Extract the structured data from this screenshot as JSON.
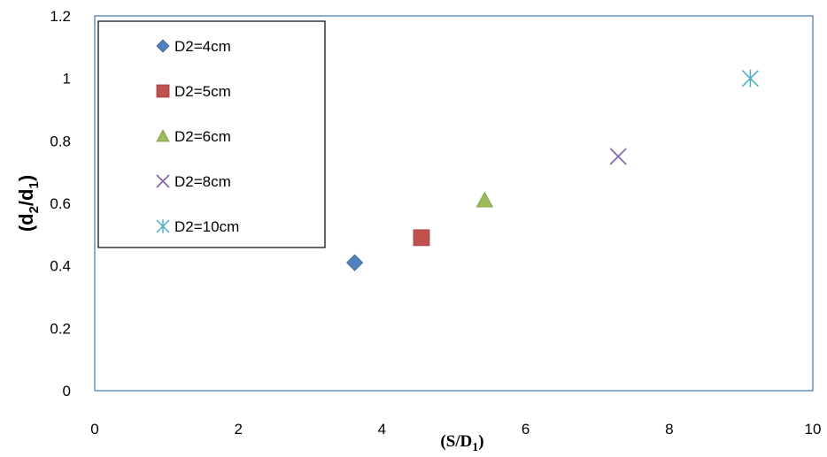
{
  "chart_data": {
    "type": "scatter",
    "title": "",
    "xlabel": {
      "main": "(S/D",
      "sub": "1",
      "close": ")"
    },
    "ylabel": {
      "open": "(d",
      "sub1": "2",
      "mid": "/d",
      "sub2": "1",
      "close": ")"
    },
    "xlim": [
      0,
      10
    ],
    "ylim": [
      0,
      1.2
    ],
    "x_ticks": [
      "0",
      "2",
      "4",
      "6",
      "8",
      "10"
    ],
    "y_ticks": [
      "0",
      "0.2",
      "0.4",
      "0.6",
      "0.8",
      "1",
      "1.2"
    ],
    "grid": false,
    "legend_position": "top-left",
    "series": [
      {
        "name": "D2=4cm",
        "marker": "diamond",
        "color": "#4f81bd",
        "points": [
          {
            "x": 3.62,
            "y": 0.41
          }
        ]
      },
      {
        "name": "D2=5cm",
        "marker": "square",
        "color": "#c0504d",
        "points": [
          {
            "x": 4.55,
            "y": 0.49
          }
        ]
      },
      {
        "name": "D2=6cm",
        "marker": "triangle",
        "color": "#9bbb59",
        "points": [
          {
            "x": 5.43,
            "y": 0.61
          }
        ]
      },
      {
        "name": "D2=8cm",
        "marker": "x",
        "color": "#8064a2",
        "points": [
          {
            "x": 7.29,
            "y": 0.75
          }
        ]
      },
      {
        "name": "D2=10cm",
        "marker": "asterisk",
        "color": "#4bacc6",
        "points": [
          {
            "x": 9.13,
            "y": 1.0
          }
        ]
      }
    ]
  }
}
